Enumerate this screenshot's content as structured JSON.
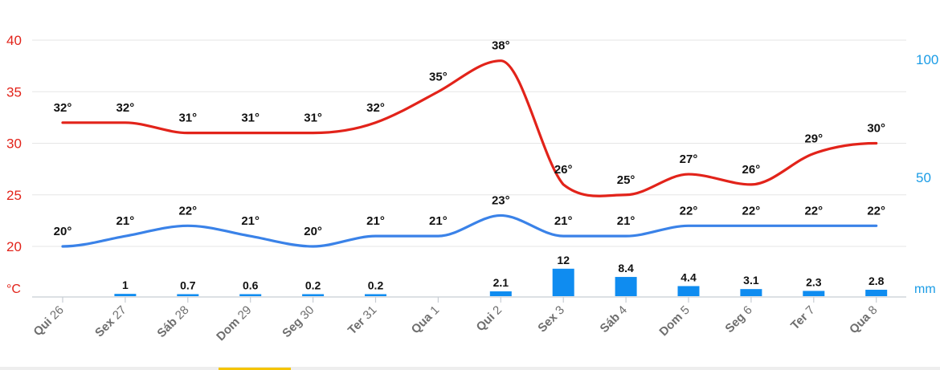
{
  "chart_data": {
    "type": "line",
    "categories": [
      {
        "day": "Qui",
        "date": "26"
      },
      {
        "day": "Sex",
        "date": "27"
      },
      {
        "day": "Sáb",
        "date": "28"
      },
      {
        "day": "Dom",
        "date": "29"
      },
      {
        "day": "Seg",
        "date": "30"
      },
      {
        "day": "Ter",
        "date": "31"
      },
      {
        "day": "Qua",
        "date": "1"
      },
      {
        "day": "Qui",
        "date": "2"
      },
      {
        "day": "Sex",
        "date": "3"
      },
      {
        "day": "Sáb",
        "date": "4"
      },
      {
        "day": "Dom",
        "date": "5"
      },
      {
        "day": "Seg",
        "date": "6"
      },
      {
        "day": "Ter",
        "date": "7"
      },
      {
        "day": "Qua",
        "date": "8"
      }
    ],
    "series": [
      {
        "type": "line",
        "color": "#e2231a",
        "values": [
          32,
          32,
          31,
          31,
          31,
          32,
          35,
          38,
          26,
          25,
          27,
          26,
          29,
          30
        ],
        "labels": [
          "32°",
          "32°",
          "31°",
          "31°",
          "31°",
          "32°",
          "35°",
          "38°",
          "26°",
          "25°",
          "27°",
          "26°",
          "29°",
          "30°"
        ]
      },
      {
        "type": "line",
        "color": "#3a82e8",
        "values": [
          20,
          21,
          22,
          21,
          20,
          21,
          21,
          23,
          21,
          21,
          22,
          22,
          22,
          22
        ],
        "labels": [
          "20°",
          "21°",
          "22°",
          "21°",
          "20°",
          "21°",
          "21°",
          "23°",
          "21°",
          "21°",
          "22°",
          "22°",
          "22°",
          "22°"
        ]
      },
      {
        "type": "bar",
        "color": "#0f8cf0",
        "values": [
          null,
          1,
          0.7,
          0.6,
          0.2,
          0.2,
          null,
          2.1,
          12,
          8.4,
          4.4,
          3.1,
          2.3,
          2.8
        ],
        "labels": [
          "",
          "1",
          "0.7",
          "0.6",
          "0.2",
          "0.2",
          "",
          "2.1",
          "12",
          "8.4",
          "4.4",
          "3.1",
          "2.3",
          "2.8"
        ]
      }
    ],
    "y_left": {
      "unit": "°C",
      "ticks": [
        "20",
        "25",
        "30",
        "35",
        "40"
      ],
      "color": "#e2231a"
    },
    "y_right": {
      "unit": "mm",
      "ticks": [
        "50",
        "100"
      ],
      "color": "#1a9ce6"
    },
    "grid": true,
    "legend": "none"
  }
}
